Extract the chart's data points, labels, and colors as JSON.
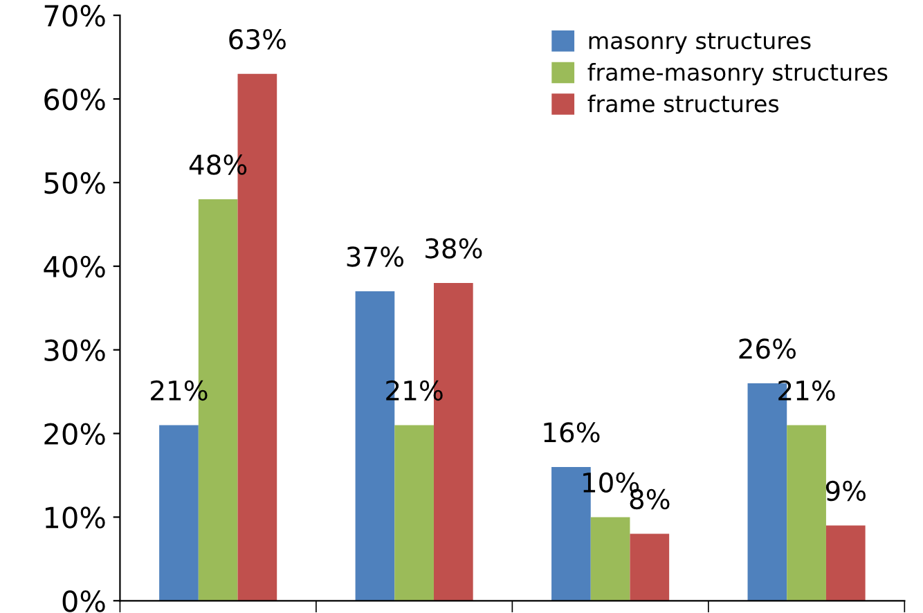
{
  "chart_data": {
    "type": "bar",
    "categories": [
      null,
      null,
      null,
      null
    ],
    "series": [
      {
        "name": "masonry structures",
        "color": "#4f81bd",
        "values": [
          21,
          37,
          16,
          26
        ],
        "value_labels": [
          "21%",
          "37%",
          "16%",
          "26%"
        ]
      },
      {
        "name": "frame-masonry structures",
        "color": "#9bbb59",
        "values": [
          48,
          21,
          10,
          21
        ],
        "value_labels": [
          "48%",
          "21%",
          "10%",
          "21%"
        ]
      },
      {
        "name": "frame structures",
        "color": "#c0504d",
        "values": [
          63,
          38,
          8,
          9
        ],
        "value_labels": [
          "63%",
          "38%",
          "8%",
          "9%"
        ]
      }
    ],
    "ylim": [
      0,
      70
    ],
    "yticks": [
      {
        "value": 0,
        "label": "0%"
      },
      {
        "value": 10,
        "label": "10%"
      },
      {
        "value": 20,
        "label": "20%"
      },
      {
        "value": 30,
        "label": "30%"
      },
      {
        "value": 40,
        "label": "40%"
      },
      {
        "value": 50,
        "label": "50%"
      },
      {
        "value": 60,
        "label": "60%"
      },
      {
        "value": 70,
        "label": "70%"
      }
    ],
    "grid": false,
    "legend": "top right"
  }
}
